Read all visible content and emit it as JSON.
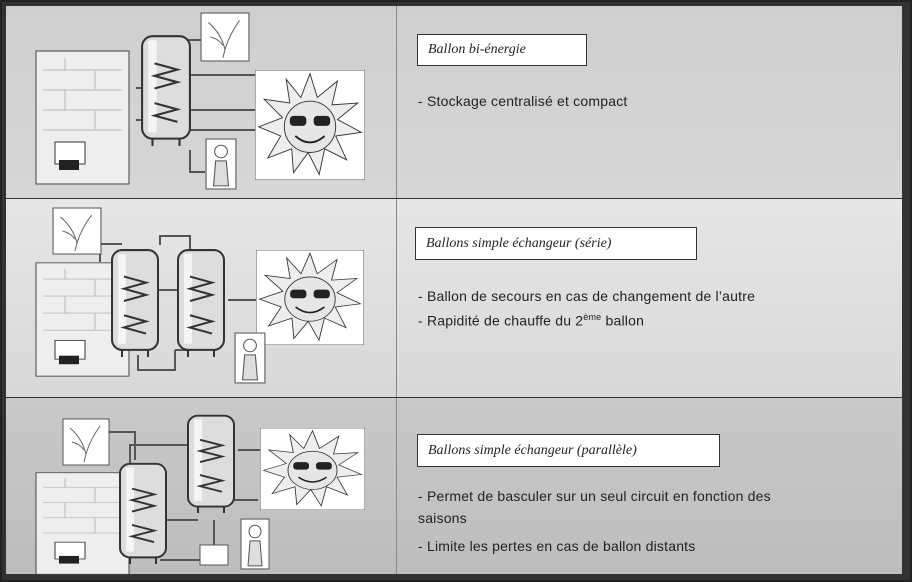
{
  "rows": [
    {
      "title": "Ballon bi-énergie",
      "lines": [
        "- Stockage centralisé et compact"
      ]
    },
    {
      "title": "Ballons simple échangeur (série)",
      "lines": [
        "- Ballon de secours en cas de changement de l’autre",
        {
          "text": "- Rapidité de chauffe du 2",
          "sup": "ème",
          "after": "ballon"
        }
      ]
    },
    {
      "title": "Ballons simple échangeur (parallèle)",
      "lines": [
        "- Permet de basculer sur un seul circuit en fonction des",
        "saisons",
        "- Limite les pertes en cas de ballon distants"
      ]
    }
  ]
}
